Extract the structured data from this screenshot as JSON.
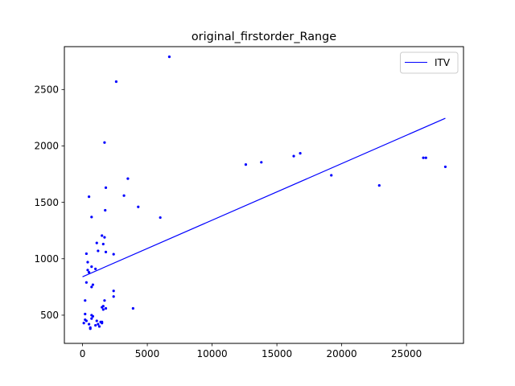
{
  "chart_data": {
    "type": "scatter",
    "title": "original_firstorder_Range",
    "xlabel": "",
    "ylabel": "",
    "xlim": [
      -1400,
      29400
    ],
    "ylim": [
      250,
      2880
    ],
    "x_ticks": [
      0,
      5000,
      10000,
      15000,
      20000,
      25000
    ],
    "y_ticks": [
      500,
      1000,
      1500,
      2000,
      2500
    ],
    "x_tick_labels": [
      "0",
      "5000",
      "10000",
      "15000",
      "20000",
      "25000"
    ],
    "y_tick_labels": [
      "500",
      "1000",
      "1500",
      "2000",
      "2500"
    ],
    "grid": false,
    "legend_position": "top-right",
    "colors": {
      "points": "#0000ff",
      "fit_line": "#0000ff"
    },
    "series": [
      {
        "type": "line",
        "name": "ITV",
        "x": [
          0,
          28000
        ],
        "y": [
          840,
          2245
        ]
      },
      {
        "type": "scatter",
        "x": [
          6700,
          2600,
          1700,
          3500,
          1800,
          3200,
          500,
          4300,
          1750,
          6000,
          700,
          12600,
          13800,
          16300,
          16800,
          19200,
          22900,
          26300,
          26500,
          28000,
          1500,
          1700,
          1100,
          1600,
          2400,
          1800,
          1200,
          300,
          400,
          400,
          700,
          500,
          300,
          800,
          700,
          2400,
          1000,
          2400,
          1700,
          3900,
          1500,
          1600,
          1800,
          1600,
          1500,
          1500,
          200,
          200,
          100,
          200,
          300,
          500,
          600,
          700,
          800,
          700,
          1000,
          1200,
          1400,
          1300,
          1100,
          600
        ],
        "y": [
          2790,
          2570,
          2030,
          1710,
          1630,
          1560,
          1550,
          1460,
          1430,
          1365,
          1370,
          1835,
          1855,
          1910,
          1935,
          1740,
          1650,
          1895,
          1895,
          1815,
          1205,
          1190,
          1140,
          1130,
          1040,
          1060,
          1070,
          1045,
          970,
          900,
          930,
          880,
          790,
          770,
          750,
          715,
          910,
          665,
          630,
          560,
          570,
          580,
          560,
          550,
          440,
          430,
          630,
          510,
          430,
          460,
          450,
          420,
          380,
          470,
          490,
          500,
          410,
          420,
          440,
          400,
          450,
          390
        ]
      }
    ]
  }
}
